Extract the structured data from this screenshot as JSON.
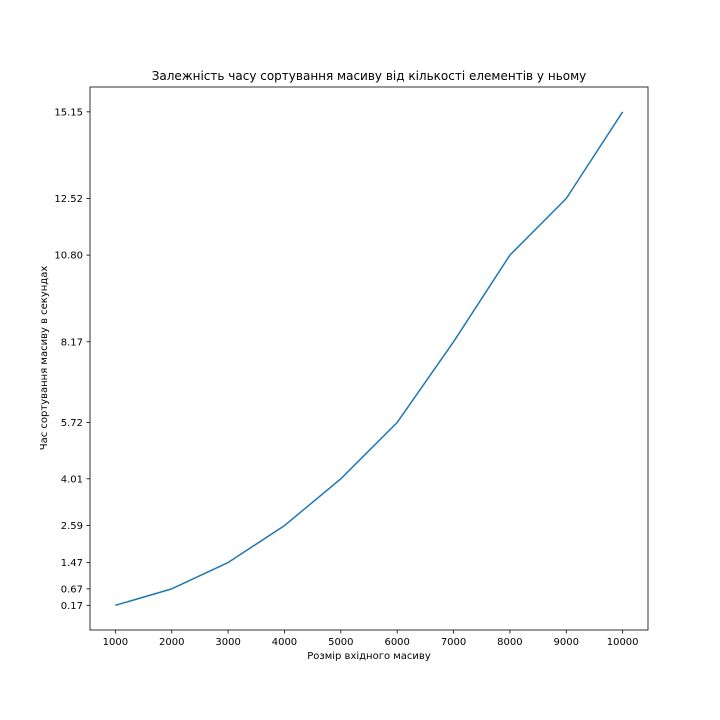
{
  "chart_data": {
    "type": "line",
    "title": "Залежність часу сортування масиву від кількості елементів у ньому",
    "xlabel": "Розмір вхідного масиву",
    "ylabel": "Час сортування масиву в секундах",
    "x": [
      1000,
      2000,
      3000,
      4000,
      5000,
      6000,
      7000,
      8000,
      9000,
      10000
    ],
    "series": [
      {
        "values": [
          0.17,
          0.67,
          1.47,
          2.59,
          4.01,
          5.72,
          8.17,
          10.8,
          12.52,
          15.15
        ]
      }
    ],
    "xticks": [
      "1000",
      "2000",
      "3000",
      "4000",
      "5000",
      "6000",
      "7000",
      "8000",
      "9000",
      "10000"
    ],
    "yticks": [
      "0.17",
      "0.67",
      "1.47",
      "2.59",
      "4.01",
      "5.72",
      "8.17",
      "10.80",
      "12.52",
      "15.15"
    ],
    "xlim": [
      550,
      10450
    ],
    "ylim": [
      -0.5788,
      15.9039
    ],
    "grid": false,
    "legend": "none",
    "colors": {
      "line": "#1f77b4",
      "axes": "#000000"
    }
  }
}
